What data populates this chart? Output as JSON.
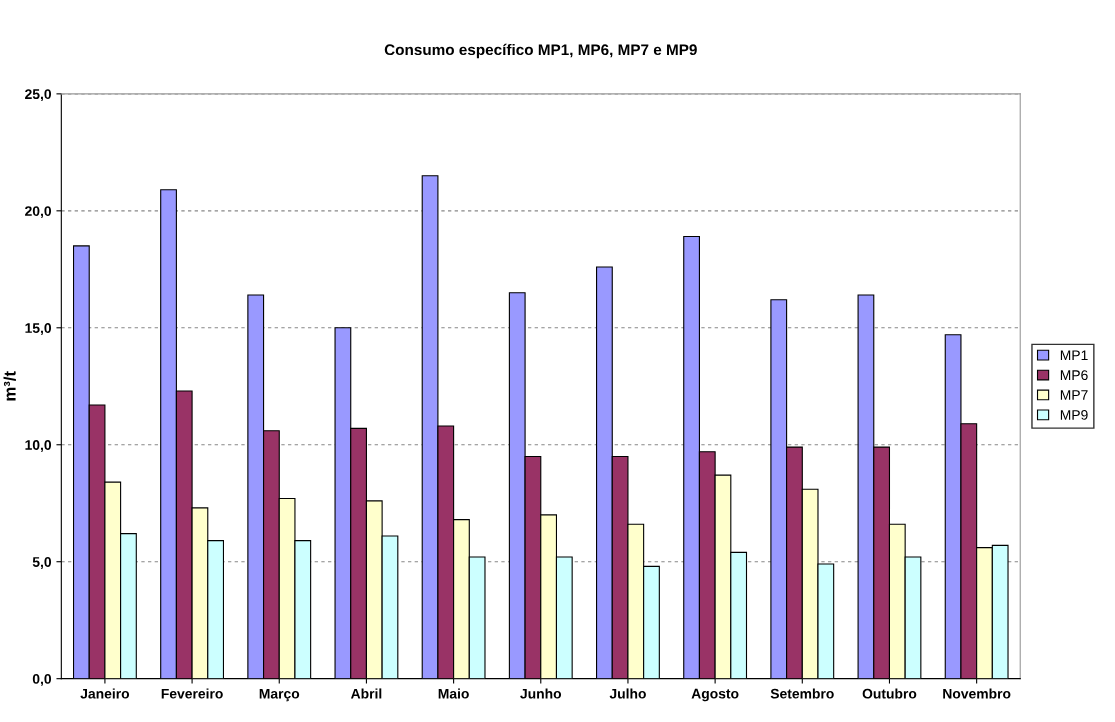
{
  "chart_data": {
    "type": "bar",
    "title": "Consumo específico MP1, MP6, MP7 e MP9",
    "ylabel": "m³/t",
    "categories": [
      "Janeiro",
      "Fevereiro",
      "Março",
      "Abril",
      "Maio",
      "Junho",
      "Julho",
      "Agosto",
      "Setembro",
      "Outubro",
      "Novembro"
    ],
    "series": [
      {
        "name": "MP1",
        "color": "#9999ff",
        "values": [
          18.5,
          20.9,
          16.4,
          15.0,
          21.5,
          16.5,
          17.6,
          18.9,
          16.2,
          16.4,
          14.7
        ]
      },
      {
        "name": "MP6",
        "color": "#993366",
        "values": [
          11.7,
          12.3,
          10.6,
          10.7,
          10.8,
          9.5,
          9.5,
          9.7,
          9.9,
          9.9,
          10.9
        ]
      },
      {
        "name": "MP7",
        "color": "#ffffcc",
        "values": [
          8.4,
          7.3,
          7.7,
          7.6,
          6.8,
          7.0,
          6.6,
          8.7,
          8.1,
          6.6,
          5.6
        ]
      },
      {
        "name": "MP9",
        "color": "#ccffff",
        "values": [
          6.2,
          5.9,
          5.9,
          6.1,
          5.2,
          5.2,
          4.8,
          5.4,
          4.9,
          5.2,
          5.7
        ]
      }
    ],
    "ylim": [
      0,
      25
    ],
    "yticks": [
      {
        "value": 0,
        "label": "0,0"
      },
      {
        "value": 5,
        "label": "5,0"
      },
      {
        "value": 10,
        "label": "10,0"
      },
      {
        "value": 15,
        "label": "15,0"
      },
      {
        "value": 20,
        "label": "20,0"
      },
      {
        "value": 25,
        "label": "25,0"
      }
    ],
    "grid": "y",
    "legend": "right"
  }
}
